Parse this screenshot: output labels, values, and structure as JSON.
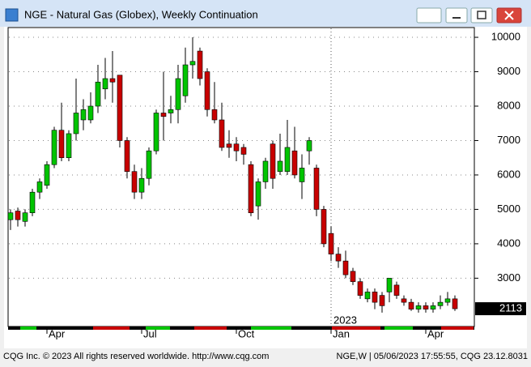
{
  "window": {
    "copyright": "CQG Inc. © 2023 All rights reserved worldwide. http://www.cqg.com",
    "status": "NGE,W | 05/06/2023 17:55:55, CQG 23.12.8031"
  },
  "chart_data": {
    "type": "candlestick",
    "title": "NGE - Natural Gas (Globex), Weekly Continuation",
    "categories": [
      null,
      null,
      null,
      null,
      null,
      "Apr",
      null,
      null,
      null,
      null,
      null,
      null,
      null,
      null,
      null,
      null,
      null,
      null,
      "Jul",
      null,
      null,
      null,
      null,
      null,
      null,
      null,
      null,
      null,
      null,
      null,
      null,
      "Oct",
      null,
      null,
      null,
      null,
      null,
      null,
      null,
      null,
      null,
      null,
      null,
      null,
      "Jan",
      null,
      null,
      null,
      null,
      null,
      null,
      null,
      null,
      null,
      null,
      null,
      null,
      "Apr",
      null,
      null,
      null,
      null
    ],
    "open": [
      4700,
      4950,
      4650,
      4900,
      5500,
      5700,
      6300,
      7300,
      6500,
      7200,
      7600,
      7600,
      8000,
      8500,
      8800,
      8900,
      7000,
      6100,
      5500,
      5900,
      6700,
      7800,
      7800,
      7900,
      8300,
      9200,
      9600,
      9000,
      7900,
      7600,
      6900,
      6900,
      6800,
      6300,
      5100,
      5800,
      6900,
      6100,
      6100,
      6700,
      5800,
      6700,
      6200,
      5000,
      4300,
      3700,
      3500,
      3200,
      2900,
      2400,
      2600,
      2500,
      2600,
      2800,
      2400,
      2300,
      2100,
      2200,
      2100,
      2200,
      2300,
      2400
    ],
    "high": [
      5000,
      5050,
      5000,
      5600,
      5900,
      6400,
      7400,
      8100,
      7300,
      8800,
      8200,
      8400,
      9200,
      9400,
      9600,
      8900,
      7100,
      6300,
      6200,
      6800,
      7900,
      9000,
      8300,
      9200,
      9700,
      10000,
      9700,
      9100,
      8700,
      8100,
      7300,
      7100,
      6900,
      6400,
      5900,
      6500,
      7000,
      7200,
      7600,
      7400,
      6600,
      7100,
      6300,
      5100,
      4500,
      3900,
      3800,
      3300,
      3000,
      2700,
      2700,
      2600,
      3000,
      2900,
      2500,
      2400,
      2300,
      2300,
      2300,
      2500,
      2600,
      2500
    ],
    "low": [
      4400,
      4500,
      4500,
      4800,
      5300,
      5600,
      6200,
      6400,
      6400,
      7000,
      7300,
      7500,
      7800,
      8200,
      8100,
      6800,
      5900,
      5300,
      5300,
      5700,
      6600,
      7000,
      7500,
      7500,
      8100,
      8800,
      8600,
      7700,
      7500,
      6700,
      6500,
      6400,
      6300,
      4800,
      4700,
      5600,
      5600,
      6000,
      6000,
      5900,
      5300,
      6300,
      4800,
      3900,
      3500,
      3300,
      3000,
      2800,
      2400,
      2300,
      2100,
      2000,
      2300,
      2400,
      2200,
      2050,
      2000,
      2000,
      2000,
      2100,
      2200,
      2050
    ],
    "close": [
      4900,
      4700,
      4900,
      5500,
      5800,
      6300,
      7300,
      6500,
      7200,
      7800,
      7900,
      8000,
      8700,
      8800,
      8700,
      7000,
      6100,
      5500,
      5900,
      6700,
      7800,
      7700,
      7900,
      8800,
      9200,
      9300,
      8800,
      7900,
      7600,
      6800,
      6800,
      6700,
      6600,
      4900,
      5800,
      6400,
      5900,
      6400,
      6800,
      6000,
      6200,
      7000,
      5000,
      4000,
      3700,
      3500,
      3100,
      2900,
      2500,
      2600,
      2300,
      2200,
      3000,
      2500,
      2300,
      2100,
      2200,
      2100,
      2200,
      2300,
      2400,
      2113
    ],
    "up_color": "#00c400",
    "down_color": "#c80000",
    "ylim": [
      1620,
      10260
    ],
    "yticks": [
      3000,
      4000,
      5000,
      6000,
      7000,
      8000,
      9000,
      10000
    ],
    "grid": true,
    "year_label": "2023",
    "last_price": 2113
  }
}
